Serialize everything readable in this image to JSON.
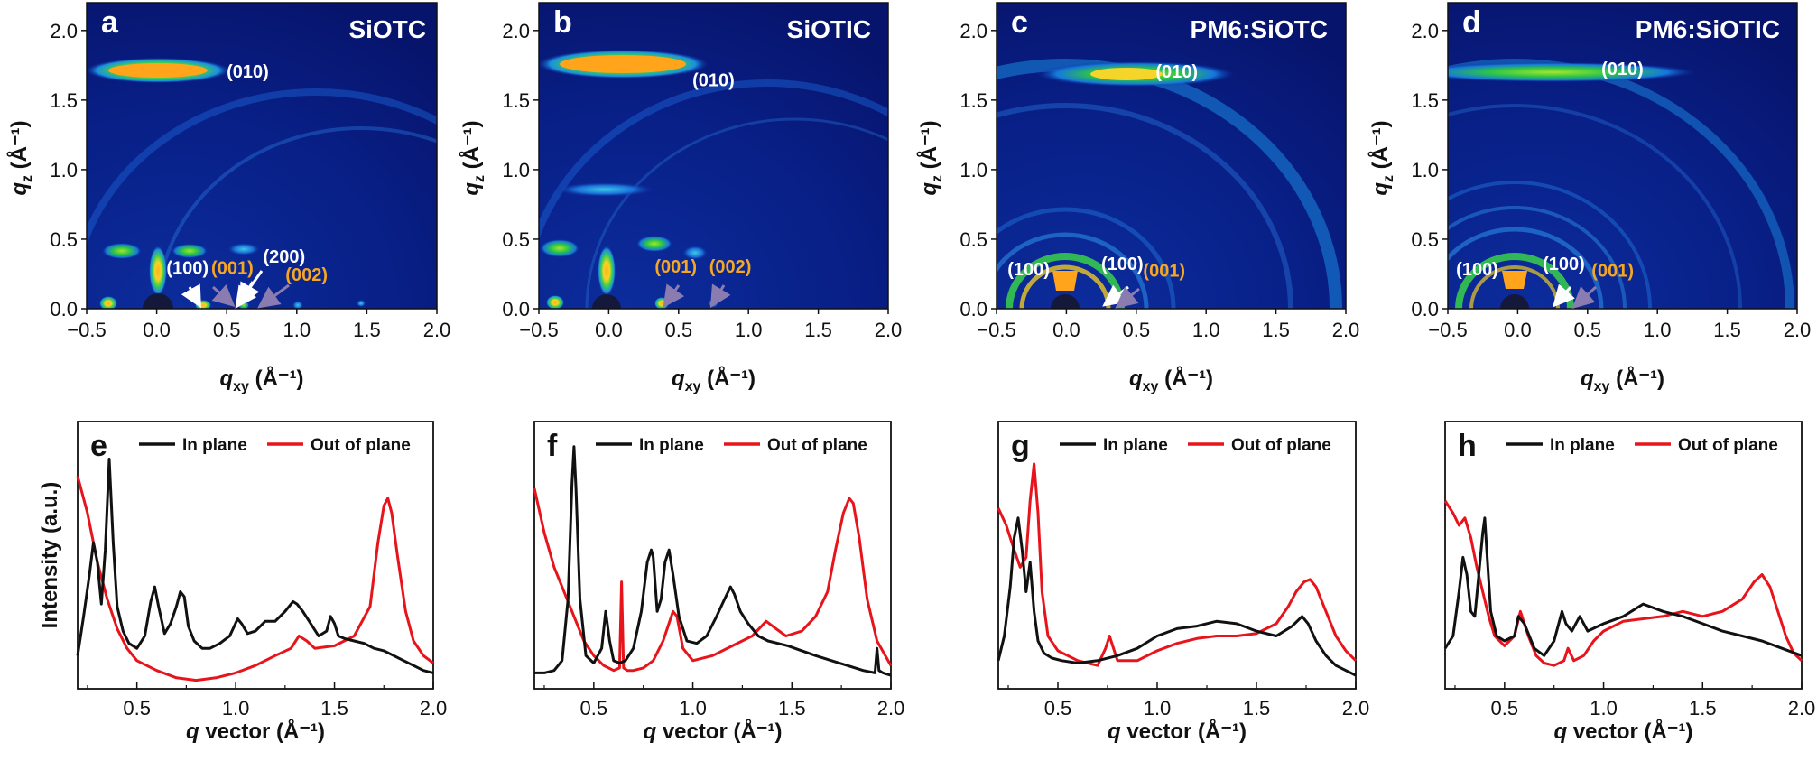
{
  "figure": {
    "colors": {
      "in_plane": "#111111",
      "out_of_plane": "#e8141c",
      "giwaxs_bg": "#0a1a6b",
      "ann_white": "#ffffff",
      "ann_orange": "#f5a623",
      "arrow_purple": "#8a7bb0"
    }
  },
  "chart_data": [
    {
      "type": "heatmap",
      "panel": "a",
      "title": "SiOTC",
      "xlabel": "q_xy (Å⁻¹)",
      "ylabel": "q_z (Å⁻¹)",
      "xlim": [
        -0.5,
        2.0
      ],
      "ylim": [
        0.0,
        2.2
      ],
      "xticks": [
        "−0.5",
        "0.0",
        "0.5",
        "1.0",
        "1.5",
        "2.0"
      ],
      "yticks": [
        "0.0",
        "0.5",
        "1.0",
        "1.5",
        "2.0"
      ],
      "annotations": [
        {
          "label": "(010)",
          "color": "white",
          "x": 0.65,
          "y": 1.66
        },
        {
          "label": "(100)",
          "color": "white",
          "x": 0.22,
          "y": 0.25
        },
        {
          "label": "(001)",
          "color": "orange",
          "x": 0.54,
          "y": 0.25
        },
        {
          "label": "(200)",
          "color": "white",
          "x": 0.91,
          "y": 0.33
        },
        {
          "label": "(002)",
          "color": "orange",
          "x": 1.07,
          "y": 0.2
        }
      ]
    },
    {
      "type": "heatmap",
      "panel": "b",
      "title": "SiOTIC",
      "xlabel": "q_xy (Å⁻¹)",
      "ylabel": "q_z (Å⁻¹)",
      "xlim": [
        -0.5,
        2.0
      ],
      "ylim": [
        0.0,
        2.2
      ],
      "xticks": [
        "−0.5",
        "0.0",
        "0.5",
        "1.0",
        "1.5",
        "2.0"
      ],
      "yticks": [
        "0.0",
        "0.5",
        "1.0",
        "1.5",
        "2.0"
      ],
      "annotations": [
        {
          "label": "(010)",
          "color": "white",
          "x": 0.75,
          "y": 1.6
        },
        {
          "label": "(001)",
          "color": "orange",
          "x": 0.48,
          "y": 0.26
        },
        {
          "label": "(002)",
          "color": "orange",
          "x": 0.87,
          "y": 0.26
        }
      ]
    },
    {
      "type": "heatmap",
      "panel": "c",
      "title": "PM6:SiOTC",
      "xlabel": "q_xy (Å⁻¹)",
      "ylabel": "q_z (Å⁻¹)",
      "xlim": [
        -0.5,
        2.0
      ],
      "ylim": [
        0.0,
        2.2
      ],
      "xticks": [
        "−0.5",
        "0.0",
        "0.5",
        "1.0",
        "1.5",
        "2.0"
      ],
      "yticks": [
        "0.0",
        "0.5",
        "1.0",
        "1.5",
        "2.0"
      ],
      "annotations": [
        {
          "label": "(010)",
          "color": "white",
          "x": 0.79,
          "y": 1.66
        },
        {
          "label": "(100)",
          "color": "white",
          "x": -0.27,
          "y": 0.24
        },
        {
          "label": "(100)",
          "color": "white",
          "x": 0.4,
          "y": 0.28
        },
        {
          "label": "(001)",
          "color": "orange",
          "x": 0.7,
          "y": 0.23
        }
      ]
    },
    {
      "type": "heatmap",
      "panel": "d",
      "title": "PM6:SiOTIC",
      "xlabel": "q_xy (Å⁻¹)",
      "ylabel": "q_z (Å⁻¹)",
      "xlim": [
        -0.5,
        2.0
      ],
      "ylim": [
        0.0,
        2.2
      ],
      "xticks": [
        "−0.5",
        "0.0",
        "0.5",
        "1.0",
        "1.5",
        "2.0"
      ],
      "yticks": [
        "0.0",
        "0.5",
        "1.0",
        "1.5",
        "2.0"
      ],
      "annotations": [
        {
          "label": "(010)",
          "color": "white",
          "x": 0.75,
          "y": 1.68
        },
        {
          "label": "(100)",
          "color": "white",
          "x": -0.29,
          "y": 0.24
        },
        {
          "label": "(100)",
          "color": "white",
          "x": 0.33,
          "y": 0.28
        },
        {
          "label": "(001)",
          "color": "orange",
          "x": 0.68,
          "y": 0.23
        }
      ]
    },
    {
      "type": "line",
      "panel": "e",
      "xlabel": "q vector (Å⁻¹)",
      "ylabel": "Intensity (a.u.)",
      "xlim": [
        0.2,
        2.0
      ],
      "ylim": [
        0,
        1
      ],
      "xticks": [
        "0.5",
        "1.0",
        "1.5",
        "2.0"
      ],
      "legend": [
        "In plane",
        "Out of plane"
      ],
      "series": [
        {
          "name": "In plane",
          "x": [
            0.2,
            0.23,
            0.26,
            0.28,
            0.3,
            0.32,
            0.34,
            0.36,
            0.38,
            0.4,
            0.43,
            0.46,
            0.5,
            0.54,
            0.57,
            0.59,
            0.61,
            0.64,
            0.67,
            0.7,
            0.72,
            0.74,
            0.76,
            0.79,
            0.83,
            0.87,
            0.92,
            0.97,
            1.01,
            1.03,
            1.06,
            1.1,
            1.15,
            1.2,
            1.25,
            1.29,
            1.31,
            1.34,
            1.38,
            1.42,
            1.46,
            1.48,
            1.5,
            1.52,
            1.55,
            1.6,
            1.65,
            1.7,
            1.75,
            1.8,
            1.85,
            1.9,
            1.95,
            2.0
          ],
          "values": [
            0.12,
            0.28,
            0.45,
            0.58,
            0.5,
            0.33,
            0.55,
            0.92,
            0.58,
            0.32,
            0.22,
            0.17,
            0.15,
            0.2,
            0.34,
            0.4,
            0.32,
            0.21,
            0.25,
            0.32,
            0.38,
            0.36,
            0.24,
            0.18,
            0.15,
            0.15,
            0.17,
            0.2,
            0.27,
            0.25,
            0.21,
            0.22,
            0.26,
            0.26,
            0.3,
            0.34,
            0.33,
            0.3,
            0.25,
            0.2,
            0.22,
            0.28,
            0.25,
            0.2,
            0.19,
            0.18,
            0.17,
            0.15,
            0.14,
            0.12,
            0.1,
            0.08,
            0.06,
            0.05
          ]
        },
        {
          "name": "Out of plane",
          "x": [
            0.2,
            0.25,
            0.3,
            0.35,
            0.4,
            0.45,
            0.5,
            0.6,
            0.7,
            0.8,
            0.9,
            1.0,
            1.1,
            1.2,
            1.28,
            1.32,
            1.36,
            1.4,
            1.5,
            1.6,
            1.68,
            1.72,
            1.75,
            1.77,
            1.79,
            1.82,
            1.86,
            1.9,
            1.95,
            2.0
          ],
          "values": [
            0.85,
            0.7,
            0.5,
            0.35,
            0.23,
            0.15,
            0.1,
            0.06,
            0.03,
            0.02,
            0.03,
            0.05,
            0.08,
            0.12,
            0.15,
            0.2,
            0.18,
            0.15,
            0.16,
            0.2,
            0.32,
            0.58,
            0.73,
            0.76,
            0.7,
            0.52,
            0.3,
            0.18,
            0.12,
            0.09
          ]
        }
      ]
    },
    {
      "type": "line",
      "panel": "f",
      "xlabel": "q vector (Å⁻¹)",
      "ylabel": "",
      "xlim": [
        0.2,
        2.0
      ],
      "ylim": [
        0,
        1
      ],
      "xticks": [
        "0.5",
        "1.0",
        "1.5",
        "2.0"
      ],
      "legend": [
        "In plane",
        "Out of plane"
      ],
      "series": [
        {
          "name": "In plane",
          "x": [
            0.2,
            0.25,
            0.3,
            0.34,
            0.37,
            0.39,
            0.4,
            0.41,
            0.43,
            0.46,
            0.5,
            0.54,
            0.56,
            0.58,
            0.6,
            0.63,
            0.66,
            0.7,
            0.74,
            0.77,
            0.79,
            0.8,
            0.82,
            0.84,
            0.86,
            0.88,
            0.9,
            0.93,
            0.97,
            1.02,
            1.07,
            1.12,
            1.16,
            1.19,
            1.21,
            1.24,
            1.28,
            1.33,
            1.38,
            1.43,
            1.48,
            1.55,
            1.62,
            1.7,
            1.78,
            1.86,
            1.92,
            1.93,
            1.94,
            1.96,
            2.0
          ],
          "values": [
            0.05,
            0.05,
            0.06,
            0.1,
            0.35,
            0.82,
            0.97,
            0.8,
            0.35,
            0.12,
            0.09,
            0.15,
            0.3,
            0.18,
            0.1,
            0.09,
            0.1,
            0.15,
            0.3,
            0.5,
            0.55,
            0.52,
            0.3,
            0.35,
            0.5,
            0.55,
            0.45,
            0.28,
            0.18,
            0.17,
            0.2,
            0.28,
            0.35,
            0.4,
            0.37,
            0.3,
            0.25,
            0.2,
            0.18,
            0.17,
            0.16,
            0.14,
            0.12,
            0.1,
            0.08,
            0.06,
            0.05,
            0.15,
            0.06,
            0.05,
            0.04
          ]
        },
        {
          "name": "Out of plane",
          "x": [
            0.2,
            0.25,
            0.3,
            0.35,
            0.4,
            0.45,
            0.5,
            0.55,
            0.6,
            0.63,
            0.64,
            0.65,
            0.67,
            0.7,
            0.75,
            0.8,
            0.85,
            0.9,
            0.92,
            0.95,
            1.0,
            1.1,
            1.2,
            1.3,
            1.37,
            1.42,
            1.47,
            1.55,
            1.62,
            1.68,
            1.72,
            1.76,
            1.79,
            1.81,
            1.84,
            1.88,
            1.93,
            2.0
          ],
          "values": [
            0.8,
            0.62,
            0.48,
            0.38,
            0.28,
            0.18,
            0.12,
            0.08,
            0.06,
            0.07,
            0.42,
            0.07,
            0.06,
            0.06,
            0.07,
            0.1,
            0.18,
            0.3,
            0.28,
            0.15,
            0.1,
            0.12,
            0.16,
            0.2,
            0.26,
            0.23,
            0.2,
            0.22,
            0.28,
            0.38,
            0.55,
            0.7,
            0.76,
            0.74,
            0.6,
            0.35,
            0.18,
            0.08
          ]
        }
      ]
    },
    {
      "type": "line",
      "panel": "g",
      "xlabel": "q vector (Å⁻¹)",
      "ylabel": "",
      "xlim": [
        0.2,
        2.0
      ],
      "ylim": [
        0,
        1
      ],
      "xticks": [
        "0.5",
        "1.0",
        "1.5",
        "2.0"
      ],
      "legend": [
        "In plane",
        "Out of plane"
      ],
      "series": [
        {
          "name": "In plane",
          "x": [
            0.2,
            0.23,
            0.26,
            0.28,
            0.3,
            0.32,
            0.34,
            0.36,
            0.38,
            0.4,
            0.43,
            0.47,
            0.52,
            0.6,
            0.7,
            0.8,
            0.9,
            1.0,
            1.1,
            1.2,
            1.3,
            1.4,
            1.5,
            1.6,
            1.68,
            1.73,
            1.76,
            1.8,
            1.85,
            1.9,
            1.95,
            2.0
          ],
          "values": [
            0.1,
            0.2,
            0.4,
            0.6,
            0.68,
            0.55,
            0.38,
            0.5,
            0.3,
            0.18,
            0.13,
            0.11,
            0.1,
            0.09,
            0.1,
            0.12,
            0.15,
            0.2,
            0.23,
            0.24,
            0.26,
            0.25,
            0.22,
            0.2,
            0.24,
            0.28,
            0.25,
            0.18,
            0.12,
            0.08,
            0.06,
            0.04
          ]
        },
        {
          "name": "Out of plane",
          "x": [
            0.2,
            0.24,
            0.28,
            0.31,
            0.34,
            0.36,
            0.38,
            0.4,
            0.42,
            0.45,
            0.5,
            0.6,
            0.7,
            0.74,
            0.76,
            0.8,
            0.9,
            1.0,
            1.1,
            1.2,
            1.3,
            1.4,
            1.5,
            1.6,
            1.66,
            1.7,
            1.74,
            1.77,
            1.8,
            1.84,
            1.9,
            1.95,
            2.0
          ],
          "values": [
            0.72,
            0.65,
            0.55,
            0.48,
            0.52,
            0.75,
            0.9,
            0.7,
            0.38,
            0.2,
            0.14,
            0.1,
            0.08,
            0.15,
            0.2,
            0.1,
            0.1,
            0.14,
            0.17,
            0.19,
            0.2,
            0.2,
            0.21,
            0.25,
            0.32,
            0.38,
            0.42,
            0.43,
            0.4,
            0.32,
            0.2,
            0.14,
            0.1
          ]
        }
      ]
    },
    {
      "type": "line",
      "panel": "h",
      "xlabel": "q vector (Å⁻¹)",
      "ylabel": "",
      "xlim": [
        0.2,
        2.0
      ],
      "ylim": [
        0,
        1
      ],
      "xticks": [
        "0.5",
        "1.0",
        "1.5",
        "2.0"
      ],
      "legend": [
        "In plane",
        "Out of plane"
      ],
      "series": [
        {
          "name": "In plane",
          "x": [
            0.2,
            0.24,
            0.27,
            0.29,
            0.31,
            0.33,
            0.35,
            0.37,
            0.39,
            0.4,
            0.41,
            0.43,
            0.46,
            0.5,
            0.55,
            0.57,
            0.6,
            0.65,
            0.7,
            0.75,
            0.79,
            0.81,
            0.84,
            0.88,
            0.92,
            1.0,
            1.1,
            1.2,
            1.3,
            1.4,
            1.5,
            1.6,
            1.7,
            1.8,
            1.9,
            2.0
          ],
          "values": [
            0.15,
            0.2,
            0.38,
            0.52,
            0.45,
            0.3,
            0.28,
            0.45,
            0.62,
            0.68,
            0.55,
            0.3,
            0.2,
            0.18,
            0.2,
            0.28,
            0.25,
            0.15,
            0.12,
            0.18,
            0.3,
            0.25,
            0.22,
            0.28,
            0.22,
            0.25,
            0.28,
            0.33,
            0.3,
            0.28,
            0.25,
            0.22,
            0.2,
            0.18,
            0.15,
            0.12
          ]
        },
        {
          "name": "Out of plane",
          "x": [
            0.2,
            0.24,
            0.27,
            0.3,
            0.33,
            0.36,
            0.39,
            0.42,
            0.45,
            0.5,
            0.55,
            0.58,
            0.62,
            0.66,
            0.7,
            0.75,
            0.8,
            0.82,
            0.85,
            0.9,
            0.95,
            1.0,
            1.1,
            1.2,
            1.3,
            1.4,
            1.5,
            1.6,
            1.7,
            1.76,
            1.8,
            1.84,
            1.88,
            1.92,
            1.96,
            2.0
          ],
          "values": [
            0.75,
            0.7,
            0.65,
            0.68,
            0.6,
            0.48,
            0.38,
            0.28,
            0.2,
            0.16,
            0.2,
            0.3,
            0.2,
            0.12,
            0.09,
            0.08,
            0.1,
            0.15,
            0.1,
            0.12,
            0.18,
            0.22,
            0.26,
            0.27,
            0.28,
            0.3,
            0.28,
            0.3,
            0.35,
            0.42,
            0.45,
            0.4,
            0.3,
            0.2,
            0.13,
            0.1
          ]
        }
      ]
    }
  ]
}
